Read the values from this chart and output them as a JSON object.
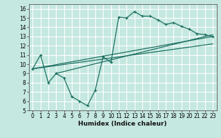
{
  "title": "",
  "xlabel": "Humidex (Indice chaleur)",
  "ylabel": "",
  "background_color": "#c5e8e0",
  "grid_color": "#ffffff",
  "line_color": "#1a6e60",
  "xlim": [
    -0.5,
    23.5
  ],
  "ylim": [
    5,
    16.5
  ],
  "xticks": [
    0,
    1,
    2,
    3,
    4,
    5,
    6,
    7,
    8,
    9,
    10,
    11,
    12,
    13,
    14,
    15,
    16,
    17,
    18,
    19,
    20,
    21,
    22,
    23
  ],
  "yticks": [
    5,
    6,
    7,
    8,
    9,
    10,
    11,
    12,
    13,
    14,
    15,
    16
  ],
  "main_series_x": [
    0,
    1,
    2,
    3,
    4,
    5,
    6,
    7,
    8,
    9,
    10,
    11,
    12,
    13,
    14,
    15,
    16,
    17,
    18,
    19,
    20,
    21,
    22,
    23
  ],
  "main_series_y": [
    9.5,
    11.0,
    8.0,
    9.0,
    8.5,
    6.5,
    6.0,
    5.5,
    7.2,
    10.8,
    10.2,
    15.1,
    15.0,
    15.7,
    15.2,
    15.2,
    14.8,
    14.3,
    14.5,
    14.1,
    13.8,
    13.3,
    13.2,
    13.0
  ],
  "straight_lines": [
    {
      "x": [
        0,
        23
      ],
      "y": [
        9.5,
        13.0
      ]
    },
    {
      "x": [
        0,
        23
      ],
      "y": [
        9.5,
        12.2
      ]
    },
    {
      "x": [
        3,
        23
      ],
      "y": [
        9.0,
        13.2
      ]
    }
  ]
}
